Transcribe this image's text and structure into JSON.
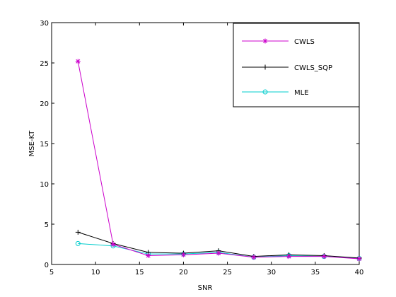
{
  "chart_data": {
    "type": "line",
    "xlabel": "SNR",
    "ylabel": "MSE-KT",
    "xlim": [
      5,
      40
    ],
    "ylim": [
      0,
      30
    ],
    "xticks": [
      5,
      10,
      15,
      20,
      25,
      30,
      35,
      40
    ],
    "yticks": [
      0,
      5,
      10,
      15,
      20,
      25,
      30
    ],
    "grid": false,
    "legend_position": "top-right",
    "x": [
      8,
      12,
      16,
      20,
      24,
      28,
      32,
      36,
      40
    ],
    "series": [
      {
        "name": "CWLS",
        "color": "#cc00cc",
        "marker": "asterisk",
        "values": [
          25.2,
          2.5,
          1.1,
          1.2,
          1.4,
          0.9,
          1.0,
          1.0,
          0.7
        ]
      },
      {
        "name": "CWLS_SQP",
        "color": "#000000",
        "marker": "plus",
        "values": [
          4.0,
          2.6,
          1.5,
          1.4,
          1.7,
          1.0,
          1.2,
          1.1,
          0.8
        ]
      },
      {
        "name": "MLE",
        "color": "#00cccc",
        "marker": "circle",
        "values": [
          2.6,
          2.3,
          1.3,
          1.3,
          1.5,
          0.9,
          1.1,
          1.0,
          0.75
        ]
      }
    ]
  }
}
